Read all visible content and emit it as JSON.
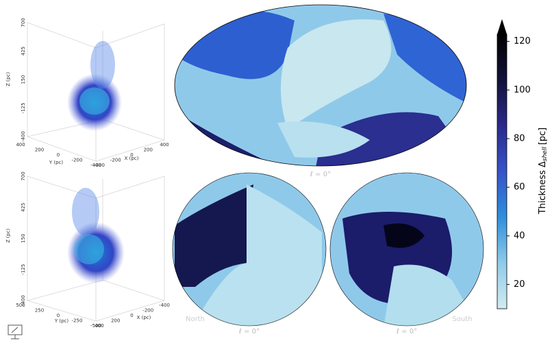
{
  "chart_data": [
    {
      "type": "scatter3d",
      "zlabel": "Z (pc)",
      "ylabel": "Y (pc)",
      "xlabel": "X (pc)",
      "zlim": [
        -400,
        700
      ],
      "zticks": [
        700,
        425,
        150,
        -125,
        -400
      ],
      "ylim": [
        400,
        -400
      ],
      "yticks": [
        400,
        200,
        0,
        -200,
        -400
      ],
      "xlim": [
        -400,
        400
      ],
      "xticks": [
        -400,
        -200,
        0,
        200,
        400
      ]
    },
    {
      "type": "scatter3d",
      "zlabel": "Z (pc)",
      "ylabel": "Y (pc)",
      "xlabel": "X (pc)",
      "zlim": [
        -400,
        700
      ],
      "zticks": [
        700,
        425,
        150,
        -125,
        -400
      ],
      "ylim": [
        500,
        -500
      ],
      "yticks": [
        500,
        250,
        0,
        -250,
        -500
      ],
      "xlim": [
        400,
        -400
      ],
      "xticks": [
        400,
        200,
        0,
        -200,
        -400
      ]
    },
    {
      "type": "skymap",
      "panels": [
        {
          "projection": "mollweide",
          "label": "ℓ = 0°"
        },
        {
          "projection": "north",
          "name": "North",
          "label": "ℓ = 0°"
        },
        {
          "projection": "south",
          "name": "South",
          "label": "ℓ = 0°"
        }
      ]
    },
    {
      "type": "colorbar",
      "label": "Thickness Δ",
      "label_sub": "shell",
      "label_unit": "[pc]",
      "clim": [
        10,
        123
      ],
      "cticks": [
        20,
        40,
        60,
        80,
        100,
        120
      ],
      "extend": "max",
      "colormap": [
        "#d2ebef",
        "#8fcbe8",
        "#2e8fdc",
        "#3553c8",
        "#2b2a8c",
        "#13123a",
        "#000000"
      ]
    }
  ]
}
